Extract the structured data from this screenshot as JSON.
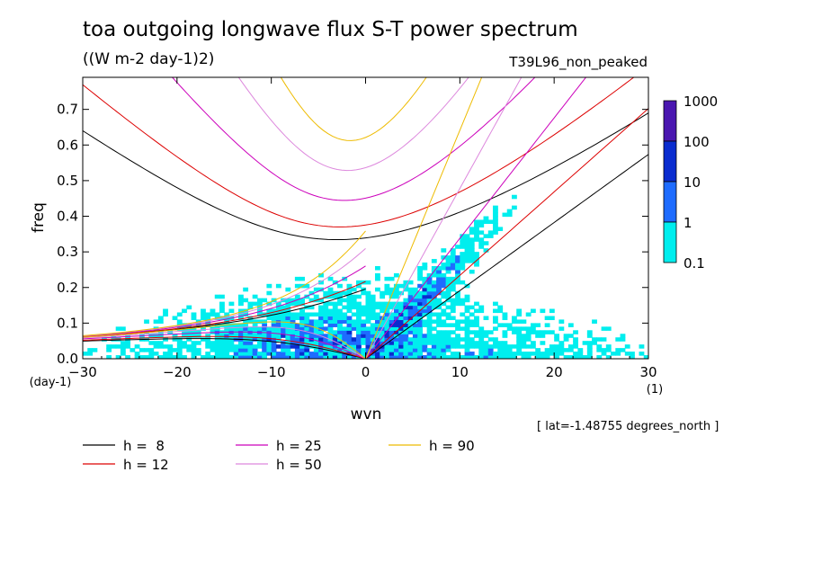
{
  "chart_data": {
    "type": "heatmap",
    "title": "toa outgoing longwave flux S-T power spectrum",
    "units": "((W m-2 day-1)2)",
    "run_label": "T39L96_non_peaked",
    "xlabel": "wvn",
    "ylabel": "freq",
    "x_unit": "(1)",
    "y_unit": "(day-1)",
    "xlim": [
      -30,
      30
    ],
    "ylim": [
      0.0,
      0.79
    ],
    "xticks": [
      "-30",
      "-20",
      "-10",
      "0",
      "10",
      "20",
      "30"
    ],
    "yticks": [
      "0.0",
      "0.1",
      "0.2",
      "0.3",
      "0.4",
      "0.5",
      "0.6",
      "0.7"
    ],
    "colorbar": {
      "levels": [
        "0.1",
        "1",
        "10",
        "100",
        "1000"
      ],
      "colors": [
        "#00eeee",
        "#1e6cff",
        "#0a2ccf",
        "#4a16b0"
      ]
    },
    "dispersion_curves": [
      {
        "label": "h =  8",
        "h": 8,
        "color": "#000000"
      },
      {
        "label": "h = 12",
        "h": 12,
        "color": "#dd0000"
      },
      {
        "label": "h = 25",
        "h": 25,
        "color": "#cc00bb"
      },
      {
        "label": "h = 50",
        "h": 50,
        "color": "#dd88dd"
      },
      {
        "label": "h = 90",
        "h": 90,
        "color": "#eebb00"
      }
    ],
    "annotation": "[ lat=-1.48755 degrees_north ]"
  }
}
